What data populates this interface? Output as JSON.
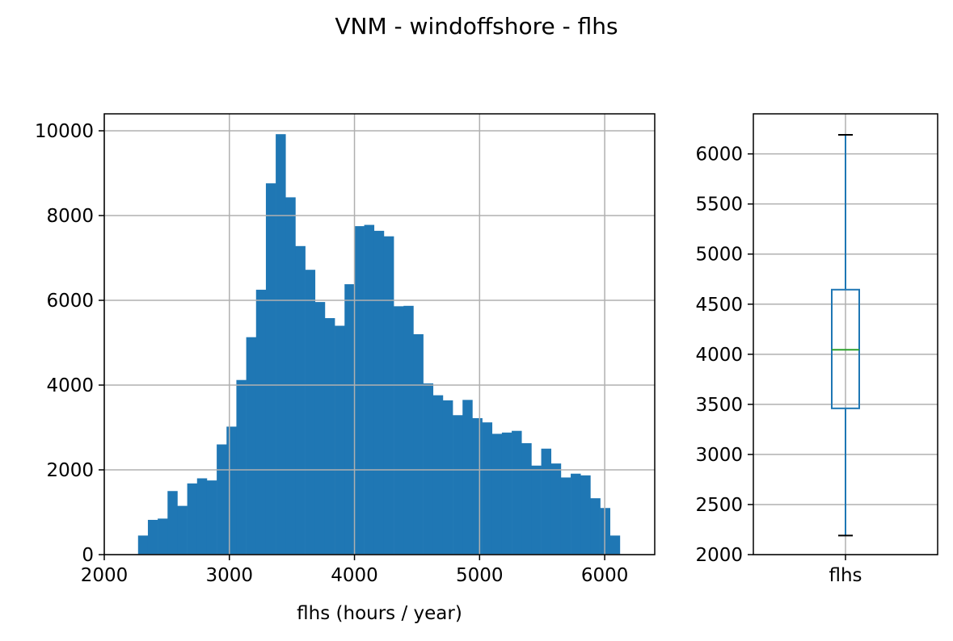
{
  "title": "VNM - windoffshore - flhs",
  "colors": {
    "bar": "#1f77b4",
    "box": "#1f77b4",
    "median": "#2ca02c",
    "grid": "#b0b0b0",
    "cap": "#000000"
  },
  "chart_data": [
    {
      "type": "bar",
      "subtype": "histogram",
      "xlabel": "flhs (hours / year)",
      "ylabel": "",
      "xlim": [
        2000,
        6400
      ],
      "ylim": [
        0,
        10400
      ],
      "grid": true,
      "xticks": [
        "2000",
        "3000",
        "4000",
        "5000",
        "6000"
      ],
      "yticks": [
        "0",
        "2000",
        "4000",
        "6000",
        "8000",
        "10000"
      ],
      "bin_start": 2270,
      "bin_width": 78.6,
      "values": [
        450,
        820,
        850,
        1500,
        1150,
        1680,
        1800,
        1750,
        2600,
        3020,
        4120,
        5130,
        6250,
        8760,
        9920,
        8430,
        7280,
        6720,
        5960,
        5580,
        5400,
        6380,
        7750,
        7780,
        7640,
        7510,
        5860,
        5870,
        5200,
        4040,
        3760,
        3640,
        3290,
        3650,
        3220,
        3120,
        2850,
        2880,
        2920,
        2630,
        2100,
        2500,
        2150,
        1820,
        1910,
        1870,
        1330,
        1100,
        450
      ]
    },
    {
      "type": "boxplot",
      "categories": [
        "flhs"
      ],
      "ylim": [
        2000,
        6400
      ],
      "grid": true,
      "yticks": [
        "2000",
        "2500",
        "3000",
        "3500",
        "4000",
        "4500",
        "5000",
        "5500",
        "6000"
      ],
      "whisker_low": 2190,
      "q1": 3460,
      "median": 4045,
      "q3": 4645,
      "whisker_high": 6190
    }
  ]
}
